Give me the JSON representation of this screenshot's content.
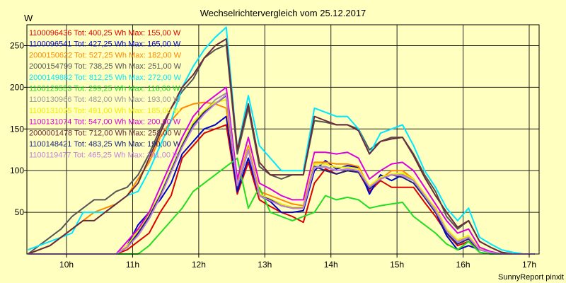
{
  "chart_data": {
    "type": "line",
    "title": "Wechselrichtervergleich vom 25.12.2017",
    "ylabel": "W",
    "credit": "SunnyReport pinxit",
    "x_unit": "h",
    "x_ticks": [
      {
        "v": 10,
        "label": "10h"
      },
      {
        "v": 11,
        "label": "11h"
      },
      {
        "v": 12,
        "label": "12h"
      },
      {
        "v": 13,
        "label": "13h"
      },
      {
        "v": 14,
        "label": "14h"
      },
      {
        "v": 15,
        "label": "15h"
      },
      {
        "v": 16,
        "label": "16h"
      },
      {
        "v": 17,
        "label": "17h"
      }
    ],
    "xlim": [
      9.4,
      17.15
    ],
    "y_ticks": [
      50,
      100,
      150,
      200,
      250
    ],
    "ylim": [
      0,
      275
    ],
    "grid": true,
    "legend_position": "top-left",
    "x": [
      9.417,
      9.583,
      9.75,
      9.917,
      10.083,
      10.25,
      10.417,
      10.583,
      10.75,
      10.917,
      11.083,
      11.25,
      11.417,
      11.583,
      11.75,
      11.917,
      12.083,
      12.25,
      12.417,
      12.583,
      12.75,
      12.917,
      13.083,
      13.25,
      13.417,
      13.583,
      13.75,
      13.917,
      14.083,
      14.25,
      14.417,
      14.583,
      14.75,
      14.917,
      15.083,
      15.25,
      15.417,
      15.583,
      15.75,
      15.917,
      16.083,
      16.25,
      16.417,
      16.583,
      16.75,
      16.917,
      17.083
    ],
    "series": [
      {
        "name": "1100096436",
        "legend": "1100096436 Tot: 400,25 Wh Max: 155,00 W",
        "color": "#dd0000",
        "values": [
          0,
          0,
          0,
          0,
          0,
          0,
          0,
          0,
          0,
          5,
          15,
          25,
          50,
          70,
          115,
          130,
          145,
          150,
          155,
          72,
          110,
          65,
          57,
          50,
          45,
          38,
          85,
          102,
          96,
          100,
          98,
          75,
          88,
          80,
          80,
          80,
          62,
          45,
          25,
          10,
          15,
          5,
          2,
          0,
          0,
          0,
          0
        ]
      },
      {
        "name": "1100096541",
        "legend": "1100096541 Tot: 427,25 Wh Max: 165,00 W",
        "color": "#0000c8",
        "values": [
          0,
          0,
          0,
          0,
          0,
          0,
          0,
          0,
          0,
          10,
          35,
          50,
          65,
          85,
          120,
          135,
          150,
          155,
          165,
          75,
          115,
          70,
          63,
          50,
          50,
          52,
          100,
          112,
          102,
          106,
          104,
          72,
          95,
          88,
          95,
          90,
          68,
          50,
          22,
          5,
          10,
          5,
          2,
          0,
          0,
          0,
          0
        ]
      },
      {
        "name": "2000150622",
        "legend": "2000150622 Tot: 527,25 Wh Max: 182,00 W",
        "color": "#ff8800",
        "values": [
          0,
          5,
          10,
          20,
          30,
          40,
          50,
          55,
          60,
          70,
          90,
          110,
          140,
          160,
          175,
          180,
          182,
          180,
          175,
          85,
          130,
          75,
          70,
          65,
          60,
          58,
          110,
          110,
          108,
          108,
          105,
          80,
          90,
          100,
          100,
          90,
          70,
          55,
          30,
          15,
          20,
          5,
          2,
          0,
          0,
          0,
          0
        ]
      },
      {
        "name": "2000154799",
        "legend": "2000154799 Tot: 738,25 Wh Max: 251,00 W",
        "color": "#555555",
        "values": [
          0,
          10,
          20,
          30,
          45,
          55,
          65,
          65,
          75,
          80,
          95,
          120,
          150,
          175,
          195,
          210,
          235,
          245,
          251,
          120,
          175,
          105,
          95,
          90,
          95,
          95,
          160,
          158,
          155,
          155,
          150,
          125,
          135,
          140,
          140,
          120,
          95,
          75,
          45,
          30,
          40,
          15,
          8,
          2,
          0,
          0,
          0
        ]
      },
      {
        "name": "2000149882",
        "legend": "2000149882 Tot: 812,25 Wh Max: 272,00 W",
        "color": "#00e8ff",
        "values": [
          5,
          10,
          15,
          20,
          25,
          50,
          50,
          50,
          60,
          70,
          75,
          100,
          130,
          160,
          200,
          225,
          245,
          260,
          272,
          125,
          190,
          130,
          115,
          100,
          100,
          100,
          175,
          170,
          165,
          165,
          150,
          120,
          145,
          150,
          155,
          130,
          100,
          80,
          55,
          40,
          55,
          20,
          12,
          5,
          2,
          0,
          0
        ]
      },
      {
        "name": "1100129553",
        "legend": "1100129553 Tot: 299,25 Wh Max: 116,00 W",
        "color": "#22dd22",
        "values": [
          0,
          0,
          0,
          0,
          0,
          0,
          0,
          0,
          0,
          0,
          0,
          10,
          25,
          40,
          55,
          75,
          85,
          95,
          105,
          115,
          55,
          80,
          50,
          45,
          40,
          45,
          50,
          70,
          65,
          68,
          65,
          55,
          58,
          60,
          62,
          45,
          35,
          25,
          12,
          5,
          15,
          2,
          0,
          0,
          0,
          0,
          0
        ]
      },
      {
        "name": "1100130966",
        "legend": "1100130966 Tot: 482,00 Wh Max: 193,00 W",
        "color": "#999999",
        "values": [
          0,
          0,
          0,
          0,
          0,
          0,
          0,
          0,
          0,
          10,
          25,
          45,
          70,
          100,
          130,
          155,
          170,
          185,
          193,
          80,
          125,
          70,
          65,
          58,
          55,
          55,
          105,
          105,
          100,
          102,
          100,
          80,
          90,
          95,
          95,
          88,
          70,
          52,
          28,
          15,
          20,
          5,
          2,
          0,
          0,
          0,
          0
        ]
      },
      {
        "name": "1100131025",
        "legend": "1100131025 Tot: 491,00 Wh Max: 185,00 W",
        "color": "#eeee00",
        "values": [
          0,
          0,
          0,
          0,
          0,
          0,
          0,
          0,
          0,
          10,
          28,
          48,
          72,
          102,
          132,
          158,
          172,
          182,
          185,
          82,
          127,
          72,
          66,
          60,
          56,
          56,
          108,
          108,
          104,
          104,
          102,
          82,
          92,
          96,
          97,
          90,
          72,
          54,
          30,
          17,
          22,
          6,
          2,
          0,
          0,
          0,
          0
        ]
      },
      {
        "name": "1100131074",
        "legend": "1100131074 Tot: 547,00 Wh Max: 200,00 W",
        "color": "#dd00dd",
        "values": [
          0,
          0,
          0,
          0,
          0,
          0,
          0,
          0,
          0,
          15,
          30,
          50,
          80,
          110,
          140,
          165,
          180,
          190,
          200,
          90,
          140,
          85,
          78,
          70,
          65,
          65,
          122,
          122,
          120,
          122,
          115,
          90,
          100,
          108,
          110,
          100,
          80,
          60,
          40,
          25,
          30,
          8,
          3,
          0,
          0,
          0,
          0
        ]
      },
      {
        "name": "2000001478",
        "legend": "2000001478 Tot: 712,00 Wh Max: 258,00 W",
        "color": "#6b2a3a",
        "values": [
          0,
          5,
          10,
          20,
          30,
          40,
          40,
          50,
          60,
          70,
          85,
          115,
          145,
          175,
          200,
          215,
          235,
          250,
          258,
          125,
          180,
          110,
          95,
          95,
          95,
          95,
          165,
          160,
          155,
          155,
          148,
          120,
          135,
          138,
          140,
          118,
          92,
          70,
          50,
          32,
          40,
          15,
          8,
          2,
          0,
          0,
          0
        ]
      },
      {
        "name": "1100148421",
        "legend": "1100148421 Tot: 483,25 Wh Max: 190,00 W",
        "color": "#1a237e",
        "values": [
          0,
          0,
          0,
          0,
          0,
          0,
          0,
          0,
          0,
          8,
          25,
          45,
          70,
          100,
          130,
          155,
          170,
          180,
          190,
          80,
          125,
          70,
          65,
          58,
          55,
          55,
          105,
          100,
          96,
          100,
          98,
          78,
          90,
          95,
          92,
          85,
          68,
          50,
          25,
          12,
          18,
          5,
          2,
          0,
          0,
          0,
          0
        ]
      },
      {
        "name": "1100119477",
        "legend": "1100119477 Tot: 465,25 Wh Max: 191,00 W",
        "color": "#c080e0",
        "values": [
          0,
          0,
          0,
          0,
          0,
          0,
          0,
          0,
          0,
          8,
          22,
          42,
          68,
          98,
          128,
          152,
          168,
          180,
          191,
          82,
          125,
          70,
          64,
          58,
          55,
          55,
          104,
          104,
          100,
          102,
          100,
          80,
          90,
          95,
          94,
          88,
          70,
          52,
          28,
          14,
          20,
          5,
          2,
          0,
          0,
          0,
          0
        ]
      }
    ]
  }
}
